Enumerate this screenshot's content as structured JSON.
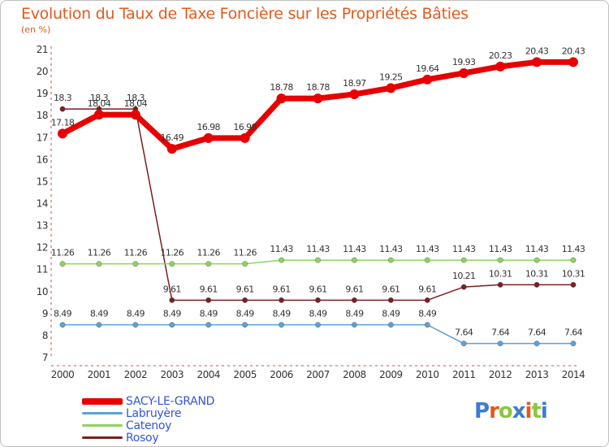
{
  "title": "Evolution du Taux de Taxe Foncière sur les Propriétés Bâties",
  "subtitle": "(en %)",
  "logo": "Proxiti",
  "chart_data": {
    "type": "line",
    "title": "Evolution du Taux de Taxe Foncière sur les Propriétés Bâties",
    "ylabel": "(en %)",
    "xlabel": "",
    "ylim": [
      7,
      21
    ],
    "yticks": [
      7,
      8,
      9,
      10,
      11,
      12,
      13,
      14,
      15,
      16,
      17,
      18,
      19,
      20,
      21
    ],
    "categories": [
      "2000",
      "2001",
      "2002",
      "2003",
      "2004",
      "2005",
      "2006",
      "2007",
      "2008",
      "2009",
      "2010",
      "2011",
      "2012",
      "2013",
      "2014"
    ],
    "series": [
      {
        "name": "SACY-LE-GRAND",
        "color": "#e80000",
        "labels_above": true,
        "values": [
          17.18,
          18.04,
          18.04,
          16.49,
          16.98,
          16.98,
          18.78,
          18.78,
          18.97,
          19.25,
          19.64,
          19.93,
          20.23,
          20.43,
          20.43
        ],
        "labels": [
          "17.18",
          "18.04",
          "18.04",
          "16.49",
          "16.98",
          "16.98",
          "18.78",
          "18.78",
          "18.97",
          "19.25",
          "19.64",
          "19.93",
          "20.23",
          "20.43",
          "20.43"
        ]
      },
      {
        "name": "Labruyère",
        "color": "#5ea0d6",
        "labels_above": true,
        "values": [
          8.49,
          8.49,
          8.49,
          8.49,
          8.49,
          8.49,
          8.49,
          8.49,
          8.49,
          8.49,
          8.49,
          7.64,
          7.64,
          7.64,
          7.64
        ],
        "labels": [
          "8.49",
          "8.49",
          "8.49",
          "8.49",
          "8.49",
          "8.49",
          "8.49",
          "8.49",
          "8.49",
          "8.49",
          "8.49",
          "7.64",
          "7.64",
          "7.64",
          "7.64"
        ]
      },
      {
        "name": "Catenoy",
        "color": "#8dd35f",
        "labels_above": true,
        "values": [
          11.26,
          11.26,
          11.26,
          11.26,
          11.26,
          11.26,
          11.43,
          11.43,
          11.43,
          11.43,
          11.43,
          11.43,
          11.43,
          11.43,
          11.43
        ],
        "labels": [
          "11.26",
          "11.26",
          "11.26",
          "11.26",
          "11.26",
          "11.26",
          "11.43",
          "11.43",
          "11.43",
          "11.43",
          "11.43",
          "11.43",
          "11.43",
          "11.43",
          "11.43"
        ]
      },
      {
        "name": "Rosoy",
        "color": "#7a1f1f",
        "labels_above": true,
        "values": [
          18.3,
          18.3,
          18.3,
          9.61,
          9.61,
          9.61,
          9.61,
          9.61,
          9.61,
          9.61,
          9.61,
          10.21,
          10.31,
          10.31,
          10.31
        ],
        "labels": [
          "18.3",
          "18.3",
          "18.3",
          "9.61",
          "9.61",
          "9.61",
          "9.61",
          "9.61",
          "9.61",
          "9.61",
          "9.61",
          "10.21",
          "10.31",
          "10.31",
          "10.31"
        ]
      }
    ]
  }
}
